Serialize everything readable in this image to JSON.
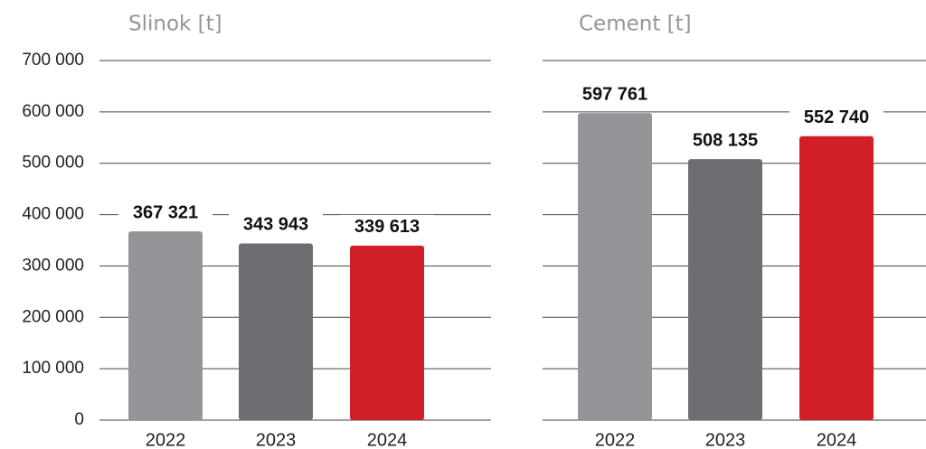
{
  "chart_data": [
    {
      "type": "bar",
      "title": "Slinok [t]",
      "categories": [
        "2022",
        "2023",
        "2024"
      ],
      "values": [
        367321,
        343943,
        339613
      ],
      "value_labels": [
        "367 321",
        "343 943",
        "339 613"
      ],
      "colors": [
        "#939598",
        "#6d6e71",
        "#d11f26"
      ],
      "ylim": [
        0,
        700000
      ],
      "yticks": [
        0,
        {
          "value": 100000,
          "label": "100 000"
        },
        {
          "value": 200000,
          "label": "200 000"
        },
        {
          "value": 300000,
          "label": "300 000"
        },
        {
          "value": 400000,
          "label": "400 000"
        },
        {
          "value": 500000,
          "label": "500 000"
        },
        {
          "value": 600000,
          "label": "600 000"
        },
        {
          "value": 700000,
          "label": "700 000"
        }
      ],
      "grid": true
    },
    {
      "type": "bar",
      "title": "Cement [t]",
      "categories": [
        "2022",
        "2023",
        "2024"
      ],
      "values": [
        597761,
        508135,
        552740
      ],
      "value_labels": [
        "597 761",
        "508 135",
        "552 740"
      ],
      "colors": [
        "#939598",
        "#6d6e71",
        "#d11f26"
      ],
      "ylim": [
        0,
        700000
      ],
      "yticks": [
        0,
        100000,
        200000,
        300000,
        400000,
        500000,
        600000,
        700000
      ],
      "grid": true
    }
  ]
}
